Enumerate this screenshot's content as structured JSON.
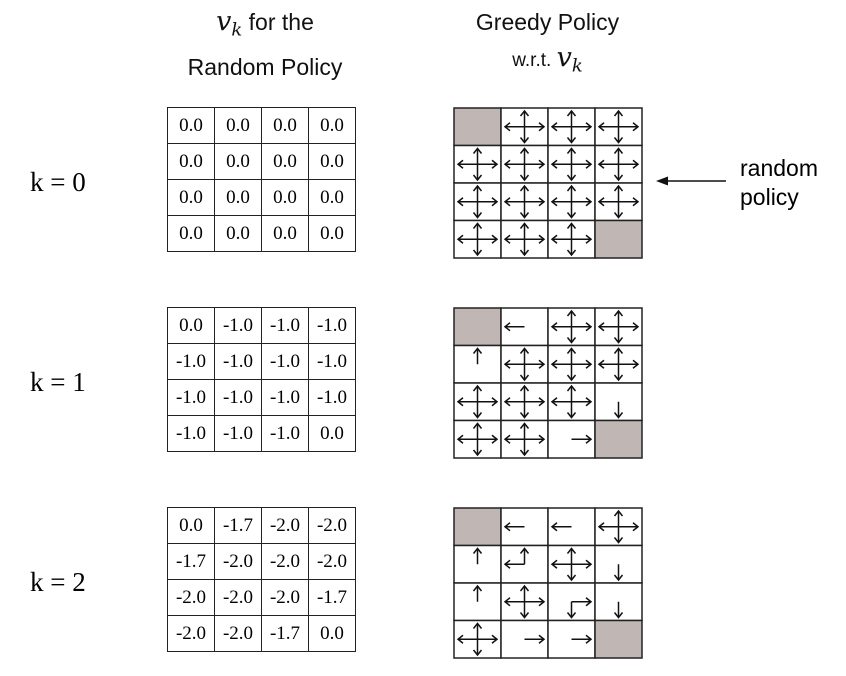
{
  "headers": {
    "left_math": "v",
    "left_sub": "k",
    "left_line1_rest": " for the",
    "left_line2": "Random Policy",
    "right_line1": "Greedy Policy",
    "right_line2_text": "w.r.t. ",
    "right_math": "v",
    "right_sub": "k"
  },
  "rows": [
    {
      "k_label": "k = 0",
      "values": [
        [
          "0.0",
          "0.0",
          "0.0",
          "0.0"
        ],
        [
          "0.0",
          "0.0",
          "0.0",
          "0.0"
        ],
        [
          "0.0",
          "0.0",
          "0.0",
          "0.0"
        ],
        [
          "0.0",
          "0.0",
          "0.0",
          "0.0"
        ]
      ],
      "policy": [
        [
          "T",
          "udlr",
          "udlr",
          "udlr"
        ],
        [
          "udlr",
          "udlr",
          "udlr",
          "udlr"
        ],
        [
          "udlr",
          "udlr",
          "udlr",
          "udlr"
        ],
        [
          "udlr",
          "udlr",
          "udlr",
          "T"
        ]
      ]
    },
    {
      "k_label": "k = 1",
      "values": [
        [
          "0.0",
          "-1.0",
          "-1.0",
          "-1.0"
        ],
        [
          "-1.0",
          "-1.0",
          "-1.0",
          "-1.0"
        ],
        [
          "-1.0",
          "-1.0",
          "-1.0",
          "-1.0"
        ],
        [
          "-1.0",
          "-1.0",
          "-1.0",
          "0.0"
        ]
      ],
      "policy": [
        [
          "T",
          "l",
          "udlr",
          "udlr"
        ],
        [
          "u",
          "udlr",
          "udlr",
          "udlr"
        ],
        [
          "udlr",
          "udlr",
          "udlr",
          "d"
        ],
        [
          "udlr",
          "udlr",
          "r",
          "T"
        ]
      ]
    },
    {
      "k_label": "k = 2",
      "values": [
        [
          "0.0",
          "-1.7",
          "-2.0",
          "-2.0"
        ],
        [
          "-1.7",
          "-2.0",
          "-2.0",
          "-2.0"
        ],
        [
          "-2.0",
          "-2.0",
          "-2.0",
          "-1.7"
        ],
        [
          "-2.0",
          "-2.0",
          "-1.7",
          "0.0"
        ]
      ],
      "policy": [
        [
          "T",
          "l",
          "l",
          "udlr"
        ],
        [
          "u",
          "ul",
          "udlr",
          "d"
        ],
        [
          "u",
          "udlr",
          "dr",
          "d"
        ],
        [
          "udlr",
          "r",
          "r",
          "T"
        ]
      ]
    }
  ],
  "annotation": {
    "line1": "random",
    "line2": "policy"
  },
  "colors": {
    "terminal": "#c0b7b4",
    "line": "#222222"
  }
}
